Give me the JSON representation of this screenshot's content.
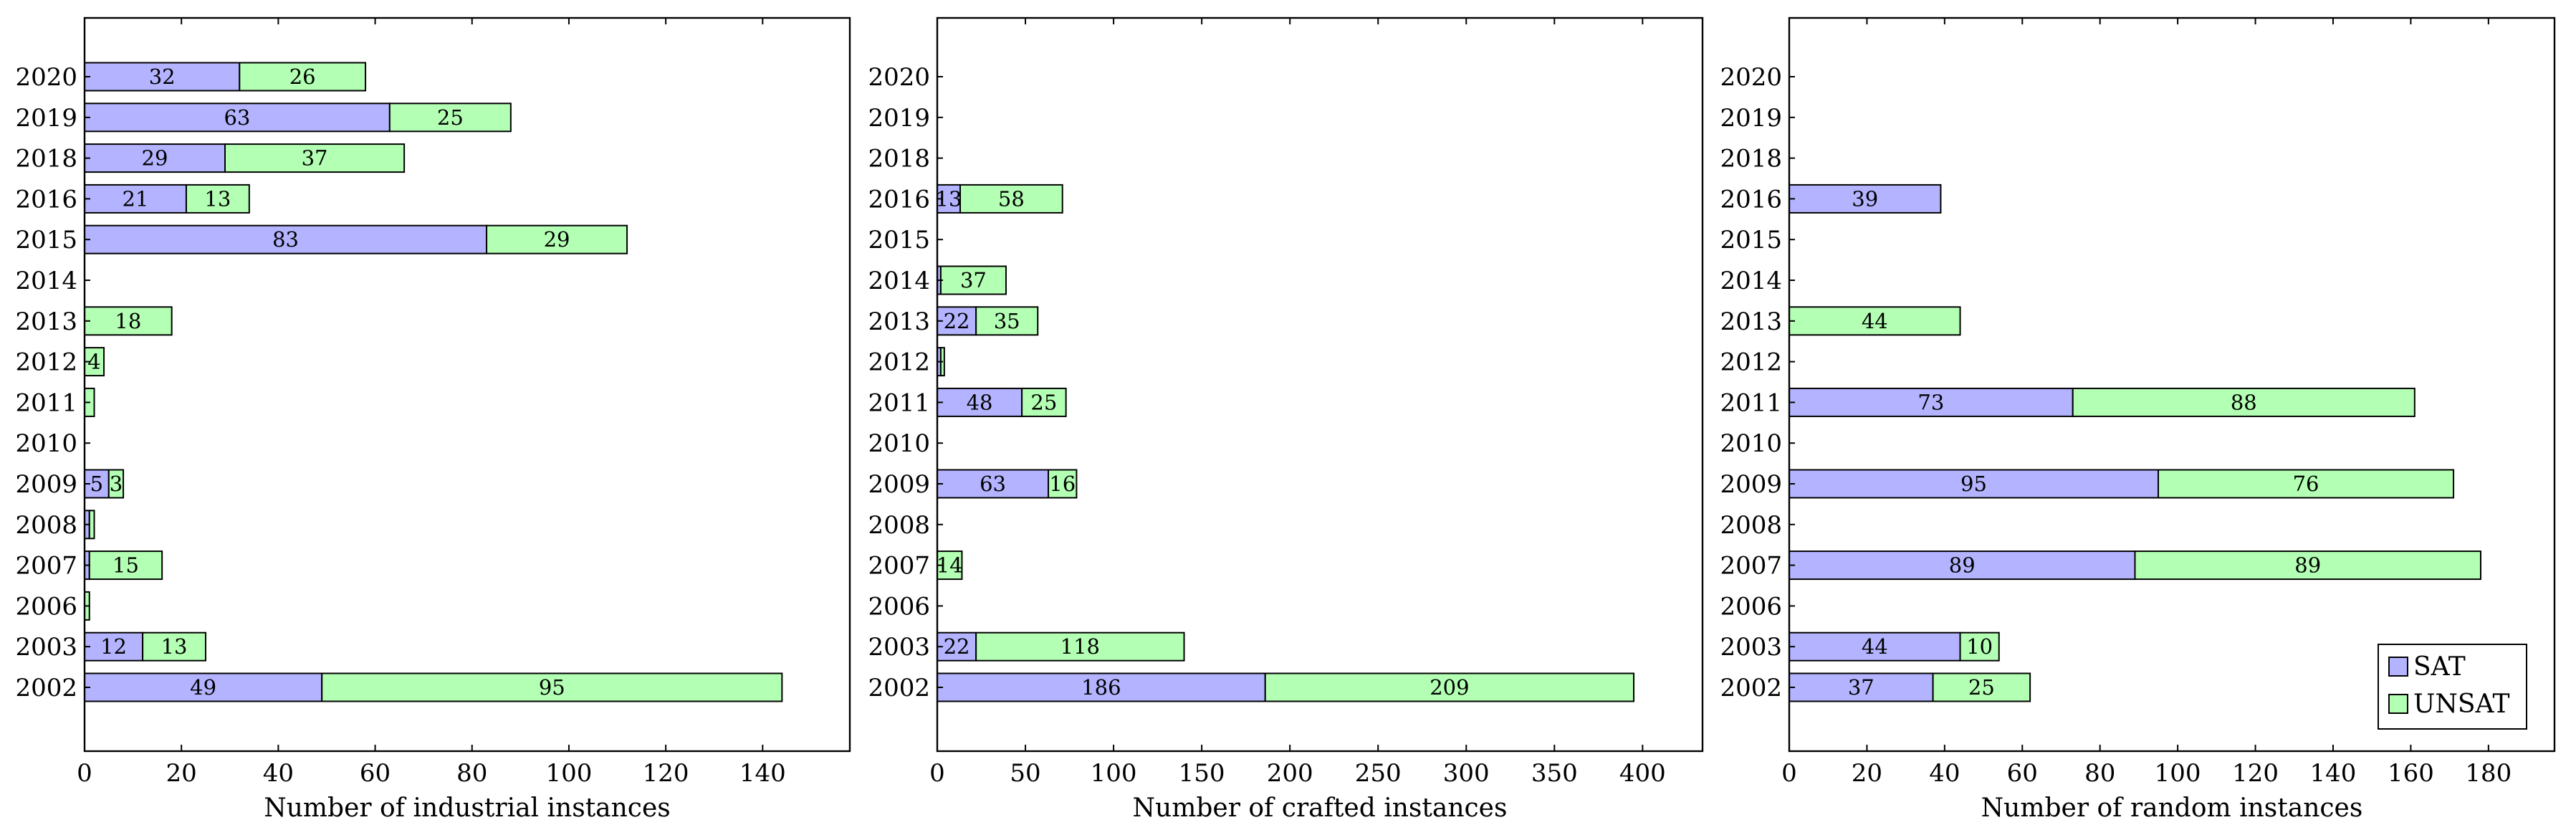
{
  "colors": {
    "sat": "#b3b3ff",
    "unsat": "#b3ffb3",
    "frame": "#000000"
  },
  "legend": {
    "placement": "bottom-right",
    "items": [
      {
        "label": "SAT"
      },
      {
        "label": "UNSAT"
      }
    ]
  },
  "chart_data": [
    {
      "type": "bar",
      "orientation": "horizontal",
      "stacked": true,
      "xlabel": "Number of industrial instances",
      "xlim": [
        0,
        158
      ],
      "xticks": [
        0,
        20,
        40,
        60,
        80,
        100,
        120,
        140
      ],
      "categories": [
        "2002",
        "2003",
        "2006",
        "2007",
        "2008",
        "2009",
        "2010",
        "2011",
        "2012",
        "2013",
        "2014",
        "2015",
        "2016",
        "2018",
        "2019",
        "2020"
      ],
      "series": [
        {
          "name": "SAT",
          "values": [
            49,
            12,
            0,
            1,
            1,
            5,
            0,
            0,
            0,
            0,
            0,
            83,
            21,
            29,
            63,
            32
          ]
        },
        {
          "name": "UNSAT",
          "values": [
            95,
            13,
            1,
            15,
            1,
            3,
            0,
            2,
            4,
            18,
            0,
            29,
            13,
            37,
            25,
            26
          ]
        }
      ]
    },
    {
      "type": "bar",
      "orientation": "horizontal",
      "stacked": true,
      "xlabel": "Number of crafted instances",
      "xlim": [
        0,
        434
      ],
      "xticks": [
        0,
        50,
        100,
        150,
        200,
        250,
        300,
        350,
        400
      ],
      "categories": [
        "2002",
        "2003",
        "2006",
        "2007",
        "2008",
        "2009",
        "2010",
        "2011",
        "2012",
        "2013",
        "2014",
        "2015",
        "2016",
        "2018",
        "2019",
        "2020"
      ],
      "series": [
        {
          "name": "SAT",
          "values": [
            186,
            22,
            0,
            0,
            0,
            63,
            0,
            48,
            2,
            22,
            2,
            0,
            13,
            0,
            0,
            0
          ]
        },
        {
          "name": "UNSAT",
          "values": [
            209,
            118,
            0,
            14,
            0,
            16,
            0,
            25,
            2,
            35,
            37,
            0,
            58,
            0,
            0,
            0
          ]
        }
      ]
    },
    {
      "type": "bar",
      "orientation": "horizontal",
      "stacked": true,
      "xlabel": "Number of random instances",
      "xlim": [
        0,
        197
      ],
      "xticks": [
        0,
        20,
        40,
        60,
        80,
        100,
        120,
        140,
        160,
        180
      ],
      "categories": [
        "2002",
        "2003",
        "2006",
        "2007",
        "2008",
        "2009",
        "2010",
        "2011",
        "2012",
        "2013",
        "2014",
        "2015",
        "2016",
        "2018",
        "2019",
        "2020"
      ],
      "series": [
        {
          "name": "SAT",
          "values": [
            37,
            44,
            0,
            89,
            0,
            95,
            0,
            73,
            0,
            0,
            0,
            0,
            39,
            0,
            0,
            0
          ]
        },
        {
          "name": "UNSAT",
          "values": [
            25,
            10,
            0,
            89,
            0,
            76,
            0,
            88,
            0,
            44,
            0,
            0,
            0,
            0,
            0,
            0
          ]
        }
      ]
    }
  ]
}
